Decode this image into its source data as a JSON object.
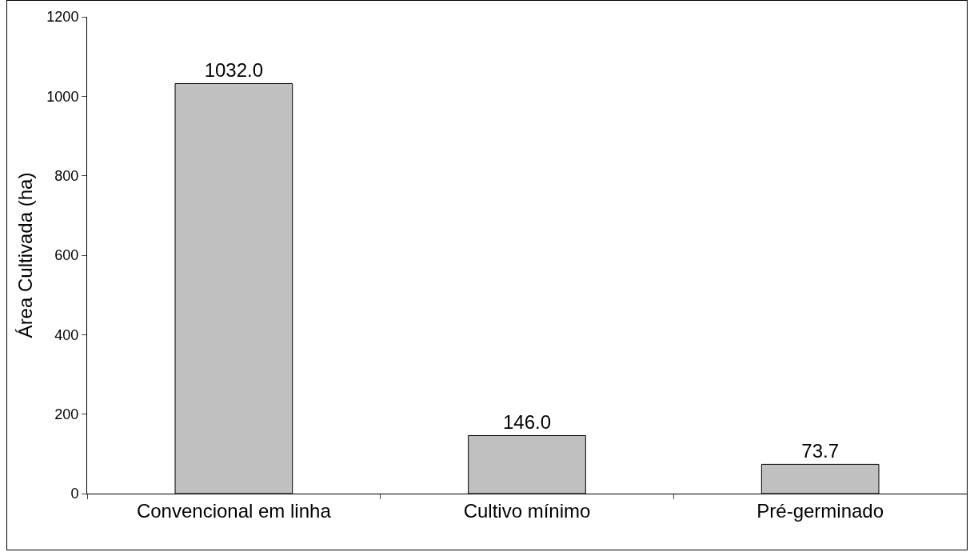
{
  "chart_data": {
    "type": "bar",
    "ylabel": "Área Cultivada (ha)",
    "categories": [
      "Convencional em linha",
      "Cultivo mínimo",
      "Pré-germinado"
    ],
    "values": [
      1032.0,
      146.0,
      73.7
    ],
    "value_labels": [
      "1032.0",
      "146.0",
      "73.7"
    ],
    "color": "#c0c0c0",
    "ylim": [
      0,
      1200
    ],
    "yticks": [
      0,
      200,
      400,
      600,
      800,
      1000,
      1200
    ],
    "grid": false
  }
}
